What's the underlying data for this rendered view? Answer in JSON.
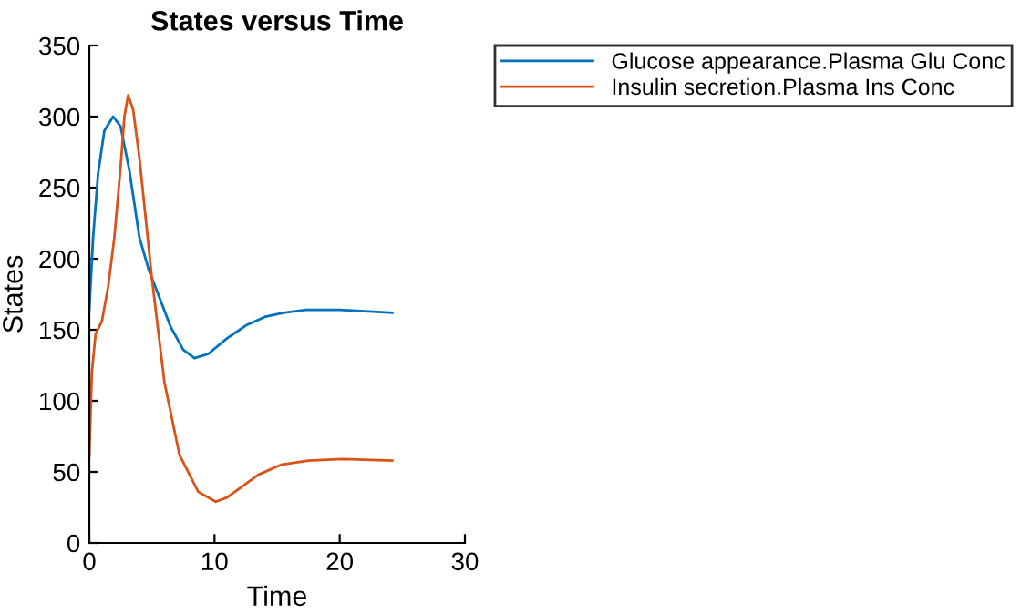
{
  "chart_data": {
    "type": "line",
    "title": "States versus Time",
    "xlabel": "Time",
    "ylabel": "States",
    "xlim": [
      0,
      30
    ],
    "xticks": [
      0,
      10,
      20,
      30
    ],
    "ylim": [
      0,
      350
    ],
    "yticks": [
      0,
      50,
      100,
      150,
      200,
      250,
      300,
      350
    ],
    "grid": false,
    "legend": "top right",
    "marker": "none",
    "line_style": "solid",
    "series": [
      {
        "name": "Glucose appearance.Plasma Glu Conc",
        "color": "#0072bd",
        "x": [
          0,
          0.3,
          0.7,
          1.2,
          1.9,
          2.5,
          3.2,
          4,
          4.75,
          5.5,
          6.5,
          7.5,
          8.4,
          9.5,
          11,
          12.5,
          14,
          15.5,
          17.3,
          20,
          22,
          24.2
        ],
        "values": [
          164,
          215,
          260,
          290,
          300,
          293,
          262,
          215,
          192,
          175,
          152,
          136,
          130,
          133,
          144,
          153,
          159,
          162,
          164,
          164,
          163,
          162
        ]
      },
      {
        "name": "Insulin secretion.Plasma Ins Conc",
        "color": "#d95319",
        "x": [
          0,
          0.2,
          0.5,
          1,
          1.5,
          2,
          2.5,
          2.8,
          3.1,
          3.5,
          4,
          5,
          6,
          7.2,
          8.7,
          10.1,
          11,
          12.4,
          13.5,
          15.3,
          17.5,
          20.2,
          24.2
        ],
        "values": [
          61,
          120,
          147,
          156,
          180,
          215,
          265,
          300,
          315,
          305,
          271,
          186,
          113,
          62,
          36,
          29,
          32,
          41,
          48,
          55,
          58,
          59,
          58
        ]
      }
    ]
  }
}
